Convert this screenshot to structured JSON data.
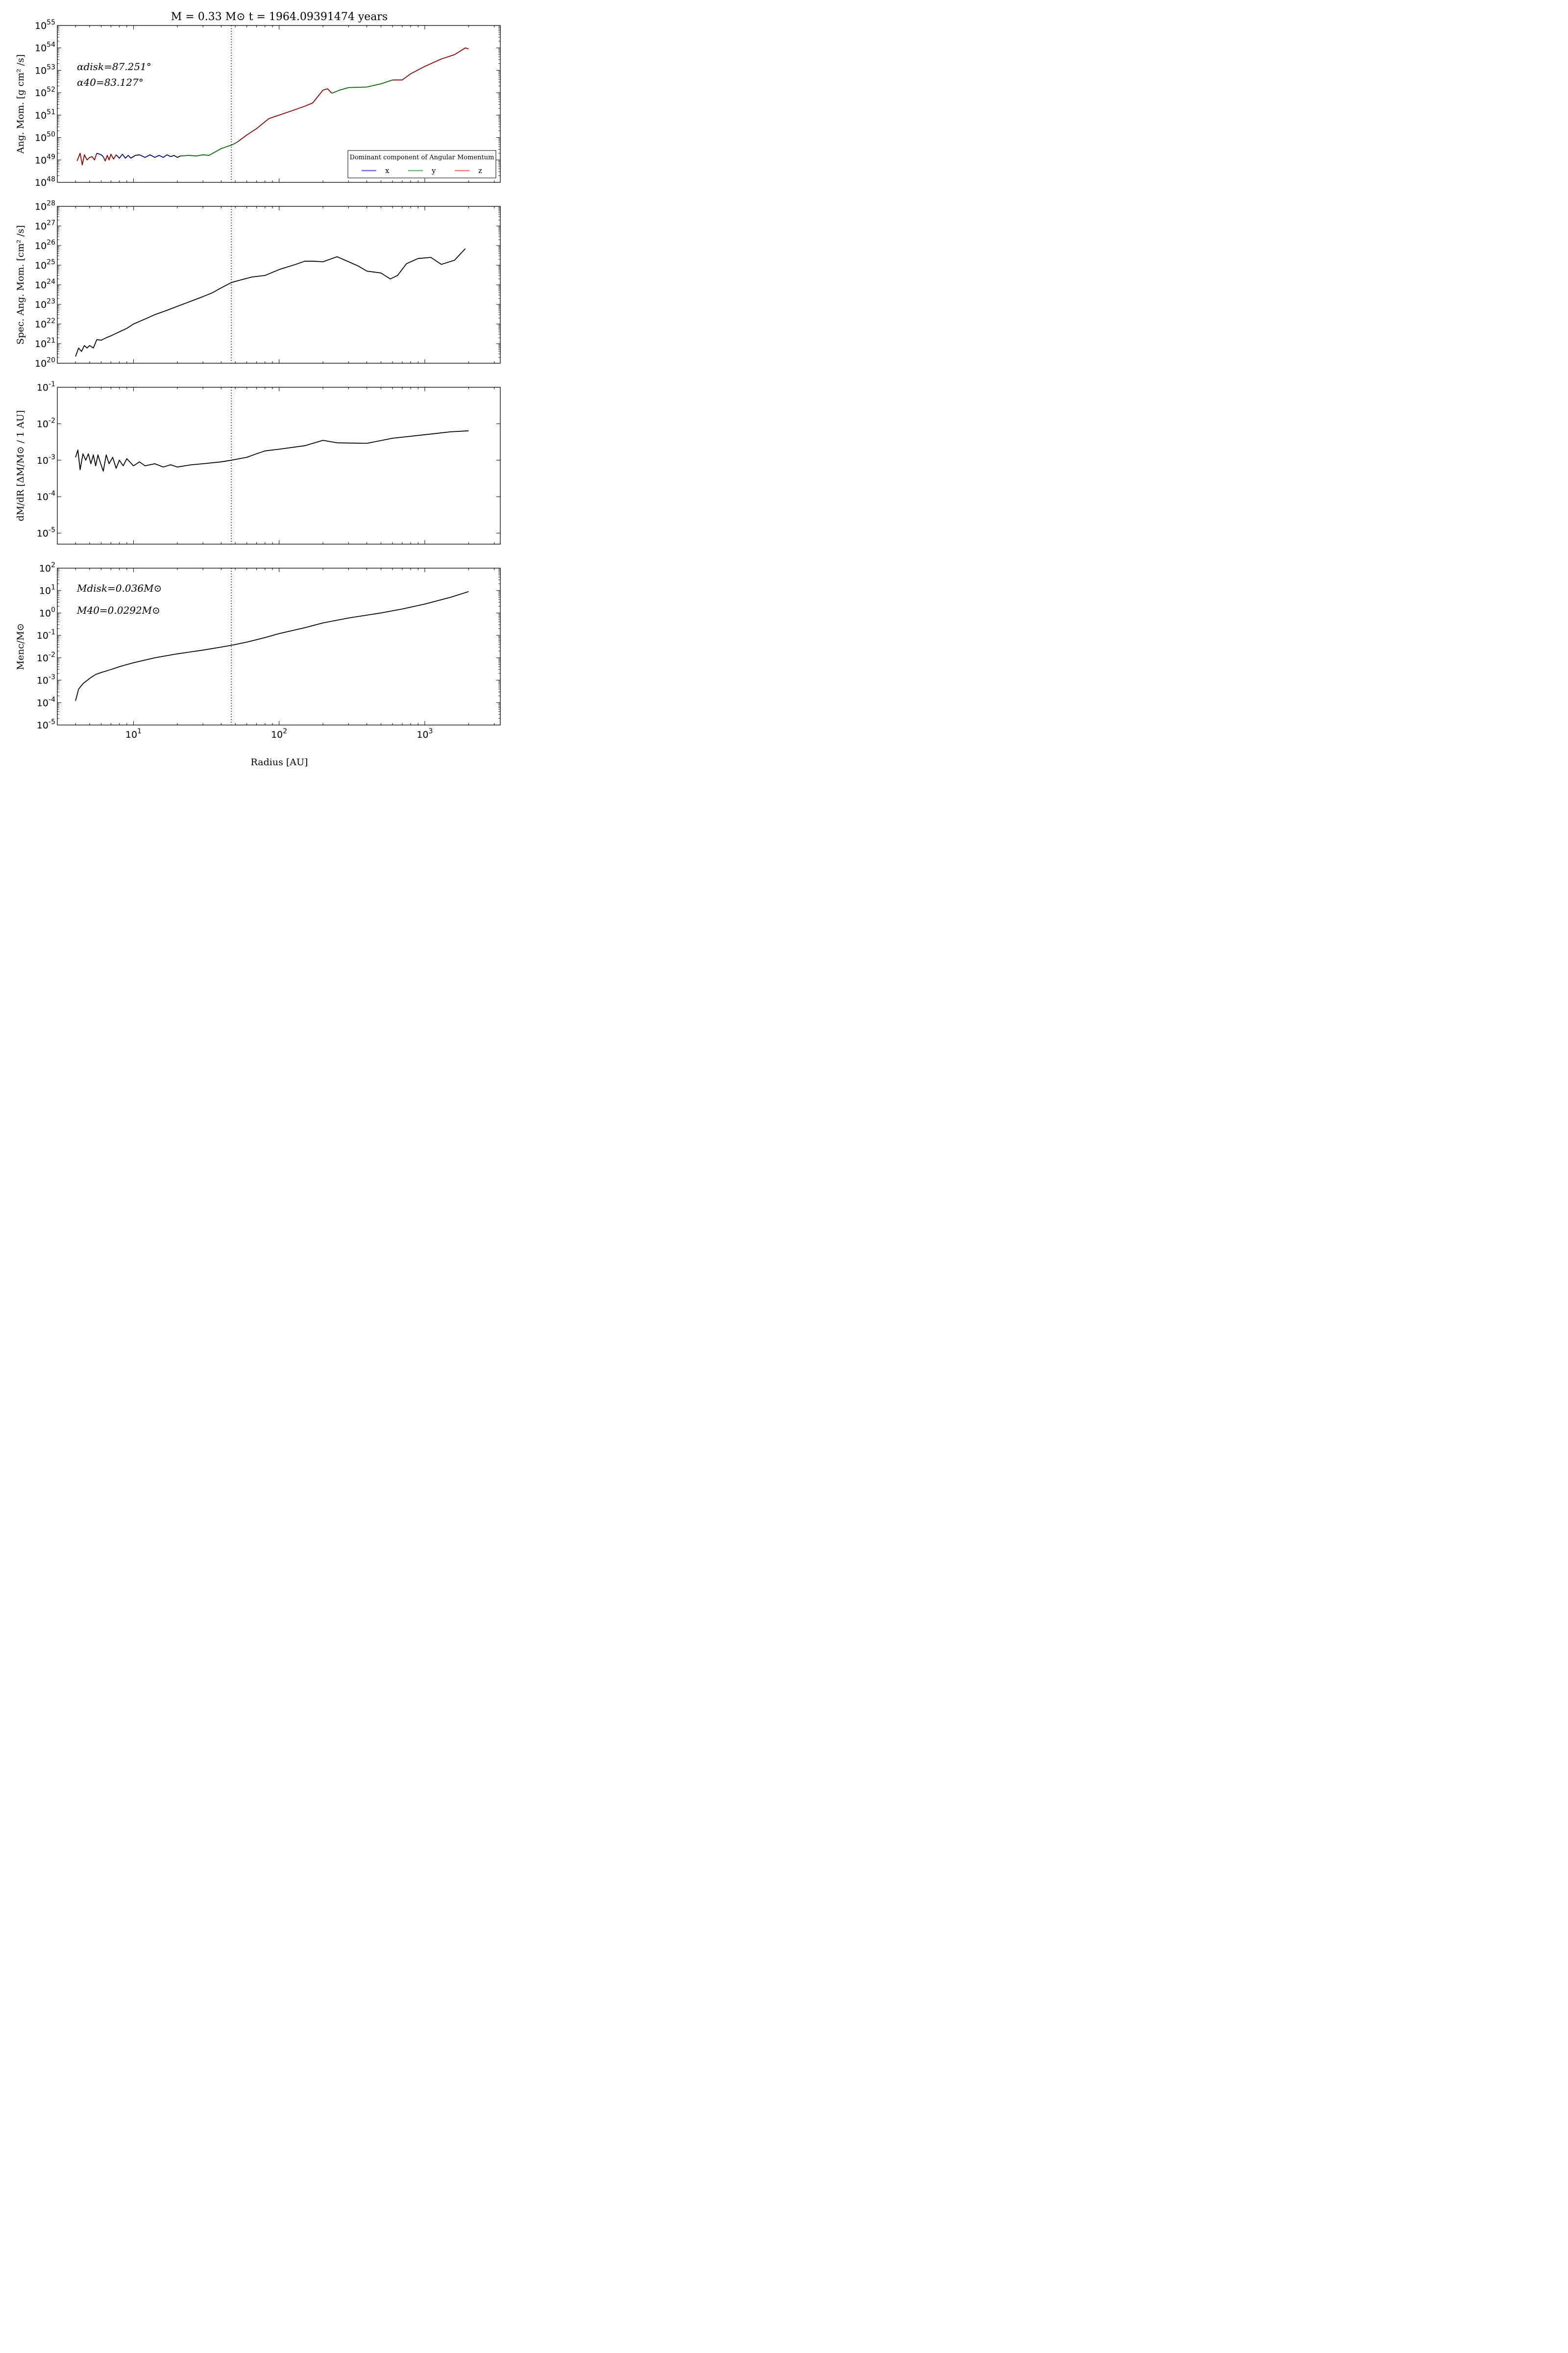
{
  "figure": {
    "title": "M = 0.33 M⊙  t = 1964.09391474 years",
    "xlabel": "Radius [AU]",
    "x_ticks": [
      {
        "value": 10,
        "label": "10",
        "exp": "1"
      },
      {
        "value": 100,
        "label": "10",
        "exp": "2"
      },
      {
        "value": 1000,
        "label": "10",
        "exp": "3"
      }
    ],
    "xlim": [
      3,
      3300
    ],
    "xscale": "log",
    "vline_x": 47,
    "colors": {
      "x": "#00008b",
      "y": "#006400",
      "z": "#8b0000",
      "line": "#000000"
    }
  },
  "panel1": {
    "ylabel": "Ang. Mom. [g cm² /s]",
    "annotations": [
      "αdisk=87.251°",
      "α40=83.127°"
    ],
    "legend": {
      "title": "Dominant component of Angular Momentum",
      "items": [
        {
          "label": "x",
          "color": "#6f6fe8"
        },
        {
          "label": "y",
          "color": "#72b872"
        },
        {
          "label": "z",
          "color": "#ee7f7f"
        }
      ]
    }
  },
  "panel2": {
    "ylabel": "Spec. Ang. Mom. [cm² /s]"
  },
  "panel3": {
    "ylabel": "dM/dR [ΔM/M⊙ / 1 AU]"
  },
  "panel4": {
    "ylabel": "Menc/M⊙",
    "annotations": [
      "Mdisk=0.036M⊙",
      "M40=0.0292M⊙"
    ]
  },
  "chart_data": [
    {
      "type": "line",
      "title": "M = 0.33 M⊙  t = 1964.09391474 years",
      "xlabel": "Radius [AU]",
      "ylabel": "Ang. Mom. [g cm² /s]",
      "xscale": "log",
      "yscale": "log",
      "xlim": [
        3,
        3300
      ],
      "ylim": [
        1e+48,
        1e+55
      ],
      "y_ticks": [
        48,
        49,
        50,
        51,
        52,
        53,
        54,
        55
      ],
      "legend": "lower-right",
      "series": [
        {
          "name": "z",
          "color": "#8b0000",
          "segments": [
            [
              [
                4.1,
                9e+48
              ],
              [
                4.3,
                2e+49
              ],
              [
                4.45,
                6e+48
              ],
              [
                4.6,
                1.7e+49
              ],
              [
                4.8,
                1e+49
              ],
              [
                5.0,
                1.3e+49
              ],
              [
                5.2,
                1.4e+49
              ],
              [
                5.4,
                1e+49
              ],
              [
                5.6,
                2e+49
              ]
            ],
            [
              [
                6.2,
                1.4e+49
              ],
              [
                6.4,
                9e+48
              ],
              [
                6.6,
                1.6e+49
              ],
              [
                6.8,
                1e+49
              ],
              [
                7.0,
                1.8e+49
              ],
              [
                7.3,
                1.1e+49
              ],
              [
                7.6,
                1.7e+49
              ]
            ]
          ]
        },
        {
          "name": "x",
          "color": "#00008b",
          "segments": [
            [
              [
                5.6,
                2e+49
              ],
              [
                6.0,
                1.7e+49
              ],
              [
                6.2,
                1.4e+49
              ]
            ],
            [
              [
                7.6,
                1.7e+49
              ],
              [
                8.0,
                1.2e+49
              ],
              [
                8.4,
                1.8e+49
              ],
              [
                8.8,
                1.2e+49
              ],
              [
                9.2,
                1.6e+49
              ],
              [
                9.6,
                1.2e+49
              ]
            ],
            [
              [
                11.0,
                1.7e+49
              ],
              [
                12,
                1.3e+49
              ],
              [
                13,
                1.7e+49
              ],
              [
                14,
                1.3e+49
              ],
              [
                15,
                1.6e+49
              ],
              [
                16,
                1.3e+49
              ],
              [
                17,
                1.7e+49
              ],
              [
                18,
                1.4e+49
              ]
            ]
          ]
        },
        {
          "name": "none",
          "color": "#000000",
          "segments": [
            [
              [
                9.6,
                1.2e+49
              ],
              [
                10.3,
                1.6e+49
              ],
              [
                11.0,
                1.7e+49
              ]
            ],
            [
              [
                18,
                1.4e+49
              ],
              [
                19,
                1.6e+49
              ],
              [
                20,
                1.3e+49
              ],
              [
                21,
                1.5e+49
              ]
            ]
          ]
        },
        {
          "name": "y",
          "color": "#006400",
          "segments": [
            [
              [
                21,
                1.5e+49
              ],
              [
                24,
                1.6e+49
              ],
              [
                27,
                1.5e+49
              ],
              [
                30,
                1.7e+49
              ],
              [
                33,
                1.6e+49
              ],
              [
                36,
                2.2e+49
              ],
              [
                40,
                3.2e+49
              ],
              [
                44,
                4e+49
              ],
              [
                48,
                4.8e+49
              ],
              [
                52,
                6.5e+49
              ]
            ],
            [
              [
                230,
                9.5e+51
              ],
              [
                260,
                1.3e+52
              ],
              [
                300,
                1.7e+52
              ],
              [
                400,
                1.8e+52
              ],
              [
                500,
                2.5e+52
              ],
              [
                600,
                3.7e+52
              ]
            ]
          ]
        },
        {
          "name": "z",
          "color": "#8b0000",
          "segments": [
            [
              [
                52,
                6.5e+49
              ],
              [
                60,
                1.3e+50
              ],
              [
                70,
                2.5e+50
              ],
              [
                85,
                7e+50
              ],
              [
                100,
                1e+51
              ],
              [
                120,
                1.5e+51
              ],
              [
                150,
                2.5e+51
              ],
              [
                170,
                3.5e+51
              ],
              [
                200,
                1.3e+52
              ],
              [
                215,
                1.5e+52
              ],
              [
                230,
                9.5e+51
              ]
            ],
            [
              [
                600,
                3.7e+52
              ],
              [
                700,
                3.7e+52
              ],
              [
                800,
                7e+52
              ],
              [
                1000,
                1.5e+53
              ],
              [
                1300,
                3.2e+53
              ],
              [
                1600,
                5e+53
              ],
              [
                1900,
                1e+54
              ],
              [
                2000,
                9e+53
              ]
            ]
          ]
        }
      ]
    },
    {
      "type": "line",
      "ylabel": "Spec. Ang. Mom. [cm² /s]",
      "xscale": "log",
      "yscale": "log",
      "xlim": [
        3,
        3300
      ],
      "ylim": [
        1e+20,
        1e+28
      ],
      "y_ticks": [
        20,
        21,
        22,
        23,
        24,
        25,
        26,
        27,
        28
      ],
      "series": [
        {
          "color": "#000000",
          "points": [
            [
              4.0,
              2.2e+20
            ],
            [
              4.2,
              6e+20
            ],
            [
              4.4,
              4e+20
            ],
            [
              4.6,
              8e+20
            ],
            [
              4.8,
              6e+20
            ],
            [
              5.0,
              8e+20
            ],
            [
              5.3,
              6e+20
            ],
            [
              5.6,
              1.6e+21
            ],
            [
              6.0,
              1.5e+21
            ],
            [
              6.5,
              2e+21
            ],
            [
              7,
              2.5e+21
            ],
            [
              8,
              4e+21
            ],
            [
              9,
              6e+21
            ],
            [
              10,
              1e+22
            ],
            [
              12,
              1.8e+22
            ],
            [
              14,
              3e+22
            ],
            [
              17,
              5e+22
            ],
            [
              20,
              8e+22
            ],
            [
              25,
              1.5e+23
            ],
            [
              30,
              2.5e+23
            ],
            [
              35,
              4e+23
            ],
            [
              40,
              7e+23
            ],
            [
              47,
              1.3e+24
            ],
            [
              55,
              1.8e+24
            ],
            [
              65,
              2.5e+24
            ],
            [
              80,
              3e+24
            ],
            [
              100,
              6e+24
            ],
            [
              130,
              1.1e+25
            ],
            [
              150,
              1.6e+25
            ],
            [
              170,
              1.6e+25
            ],
            [
              200,
              1.5e+25
            ],
            [
              250,
              2.7e+25
            ],
            [
              300,
              1.5e+25
            ],
            [
              350,
              9e+24
            ],
            [
              400,
              5e+24
            ],
            [
              500,
              4e+24
            ],
            [
              580,
              2e+24
            ],
            [
              650,
              3e+24
            ],
            [
              750,
              1.2e+25
            ],
            [
              900,
              2.2e+25
            ],
            [
              1100,
              2.5e+25
            ],
            [
              1300,
              1.1e+25
            ],
            [
              1600,
              1.8e+25
            ],
            [
              1900,
              7e+25
            ]
          ]
        }
      ]
    },
    {
      "type": "line",
      "ylabel": "dM/dR [ΔM/M⊙ / 1 AU]",
      "xscale": "log",
      "yscale": "log",
      "xlim": [
        3,
        3300
      ],
      "ylim": [
        5e-06,
        0.1
      ],
      "y_ticks": [
        -5,
        -4,
        -3,
        -2,
        -1
      ],
      "series": [
        {
          "color": "#000000",
          "points": [
            [
              4.0,
              0.0012
            ],
            [
              4.15,
              0.0019
            ],
            [
              4.3,
              0.00055
            ],
            [
              4.5,
              0.0015
            ],
            [
              4.7,
              0.001
            ],
            [
              4.9,
              0.0015
            ],
            [
              5.1,
              0.0008
            ],
            [
              5.3,
              0.0014
            ],
            [
              5.5,
              0.0007
            ],
            [
              5.7,
              0.0014
            ],
            [
              5.9,
              0.0009
            ],
            [
              6.2,
              0.0005
            ],
            [
              6.5,
              0.0014
            ],
            [
              6.8,
              0.0008
            ],
            [
              7.2,
              0.0012
            ],
            [
              7.6,
              0.0006
            ],
            [
              8.0,
              0.001
            ],
            [
              8.5,
              0.0007
            ],
            [
              9,
              0.0011
            ],
            [
              10,
              0.0007
            ],
            [
              11,
              0.0009
            ],
            [
              12,
              0.0007
            ],
            [
              14,
              0.0008
            ],
            [
              16,
              0.00065
            ],
            [
              18,
              0.00075
            ],
            [
              20,
              0.00065
            ],
            [
              25,
              0.00075
            ],
            [
              30,
              0.0008
            ],
            [
              40,
              0.0009
            ],
            [
              47,
              0.001
            ],
            [
              60,
              0.0012
            ],
            [
              70,
              0.0015
            ],
            [
              80,
              0.0018
            ],
            [
              100,
              0.002
            ],
            [
              150,
              0.0025
            ],
            [
              200,
              0.0035
            ],
            [
              250,
              0.003
            ],
            [
              400,
              0.0029
            ],
            [
              600,
              0.004
            ],
            [
              1000,
              0.005
            ],
            [
              1500,
              0.006
            ],
            [
              2000,
              0.0064
            ]
          ]
        }
      ]
    },
    {
      "type": "line",
      "xlabel": "Radius [AU]",
      "ylabel": "Menc/M⊙",
      "xscale": "log",
      "yscale": "log",
      "xlim": [
        3,
        3300
      ],
      "ylim": [
        1e-05,
        100.0
      ],
      "y_ticks": [
        -5,
        -4,
        -3,
        -2,
        -1,
        0,
        1,
        2
      ],
      "series": [
        {
          "color": "#000000",
          "points": [
            [
              4.0,
              0.00012
            ],
            [
              4.2,
              0.0004
            ],
            [
              4.5,
              0.0007
            ],
            [
              5,
              0.0012
            ],
            [
              5.5,
              0.0018
            ],
            [
              6,
              0.0022
            ],
            [
              7,
              0.003
            ],
            [
              8,
              0.004
            ],
            [
              10,
              0.006
            ],
            [
              14,
              0.01
            ],
            [
              20,
              0.015
            ],
            [
              30,
              0.022
            ],
            [
              40,
              0.03
            ],
            [
              47,
              0.036
            ],
            [
              60,
              0.05
            ],
            [
              80,
              0.08
            ],
            [
              100,
              0.12
            ],
            [
              150,
              0.22
            ],
            [
              200,
              0.36
            ],
            [
              300,
              0.6
            ],
            [
              500,
              1
            ],
            [
              700,
              1.5
            ],
            [
              1000,
              2.5
            ],
            [
              1500,
              5
            ],
            [
              2000,
              9
            ]
          ]
        }
      ]
    }
  ]
}
